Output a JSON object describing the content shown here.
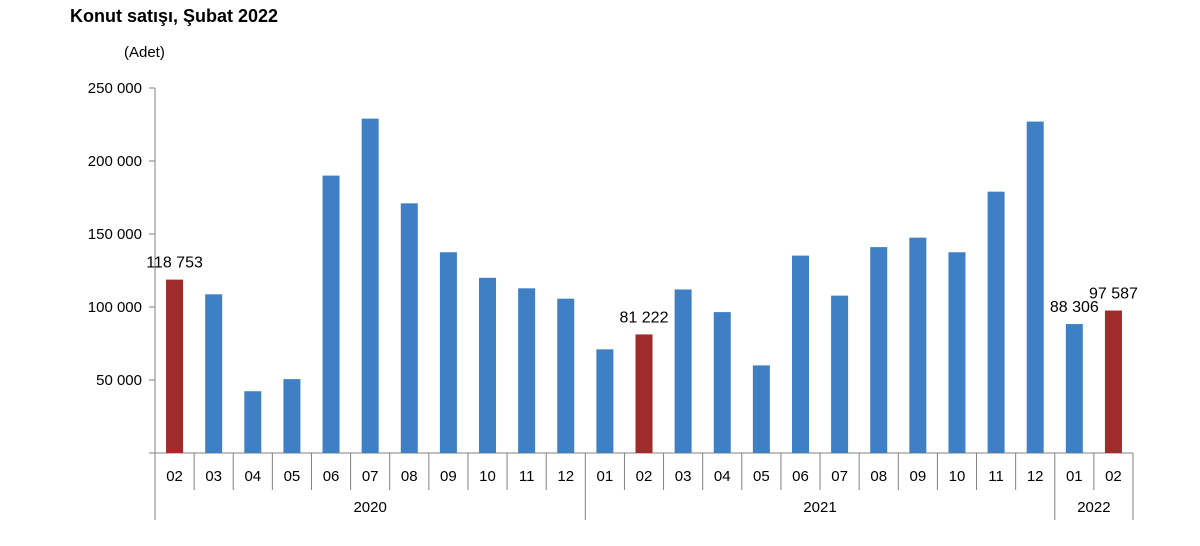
{
  "title": "Konut satışı, Şubat 2022",
  "unit_label": "(Adet)",
  "chart_data": {
    "type": "bar",
    "title": "Konut satışı, Şubat 2022",
    "ylabel": "(Adet)",
    "ylim": [
      0,
      250000
    ],
    "yticks": [
      {
        "value": 50000,
        "label": "50 000"
      },
      {
        "value": 100000,
        "label": "100 000"
      },
      {
        "value": 150000,
        "label": "150 000"
      },
      {
        "value": 200000,
        "label": "200 000"
      },
      {
        "value": 250000,
        "label": "250 000"
      }
    ],
    "categories": [
      "02",
      "03",
      "04",
      "05",
      "06",
      "07",
      "08",
      "09",
      "10",
      "11",
      "12",
      "01",
      "02",
      "03",
      "04",
      "05",
      "06",
      "07",
      "08",
      "09",
      "10",
      "11",
      "12",
      "01",
      "02"
    ],
    "values": [
      118753,
      108700,
      42300,
      50600,
      190000,
      229000,
      171000,
      137500,
      120000,
      112800,
      105700,
      71000,
      81222,
      112000,
      96500,
      60000,
      135200,
      107800,
      141000,
      147500,
      137500,
      179000,
      227000,
      88306,
      97587
    ],
    "highlight": [
      true,
      false,
      false,
      false,
      false,
      false,
      false,
      false,
      false,
      false,
      false,
      false,
      true,
      false,
      false,
      false,
      false,
      false,
      false,
      false,
      false,
      false,
      false,
      false,
      true
    ],
    "data_labels": [
      {
        "index": 0,
        "text": "118 753"
      },
      {
        "index": 12,
        "text": "81 222"
      },
      {
        "index": 23,
        "text": "88 306"
      },
      {
        "index": 24,
        "text": "97 587"
      }
    ],
    "years": [
      {
        "label": "2020",
        "start": 0,
        "end": 10
      },
      {
        "label": "2021",
        "start": 11,
        "end": 22
      },
      {
        "label": "2022",
        "start": 23,
        "end": 24
      }
    ],
    "colors": {
      "bar": "#3f7fc4",
      "highlight": "#a02b2b",
      "axis": "#808080"
    },
    "grid": false,
    "legend": "none"
  }
}
